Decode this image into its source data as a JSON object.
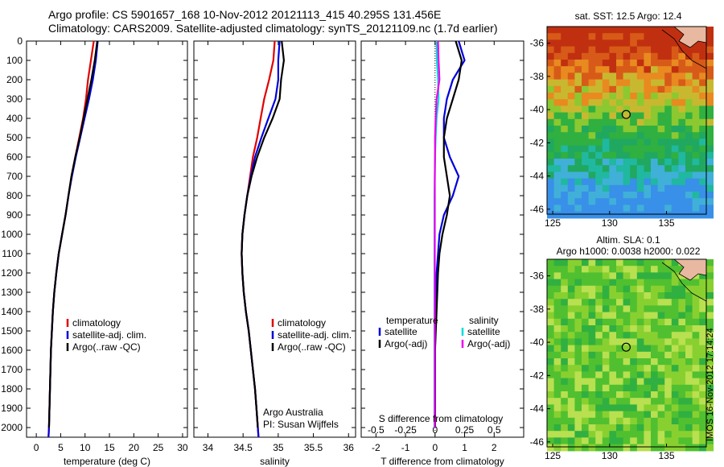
{
  "header": {
    "line1": "Argo profile: CS 5901657_168 10-Nov-2012 20121113_415 40.295S 131.456E",
    "line2": "Climatology: CARS2009. Satellite-adjusted climatology: synTS_20121109.nc (1.7d earlier)"
  },
  "chart_data": [
    {
      "type": "line",
      "xlabel": "temperature (deg C)",
      "ylabel": "",
      "xlim": [
        -2,
        31
      ],
      "ylim": [
        2050,
        0
      ],
      "xticks": [
        0,
        5,
        10,
        15,
        20,
        25,
        30
      ],
      "yticks": [
        0,
        100,
        200,
        300,
        400,
        500,
        600,
        700,
        800,
        900,
        1000,
        1100,
        1200,
        1300,
        1400,
        1500,
        1600,
        1700,
        1800,
        1900,
        2000
      ],
      "legend_position": "lower-right",
      "series": [
        {
          "name": "climatology",
          "color": "#e00000",
          "x": [
            11.8,
            11.2,
            10.6,
            10.2,
            9.6,
            8.8,
            8.0,
            7.2,
            6.6,
            6.0,
            5.3,
            4.6,
            4.1,
            3.7,
            3.4,
            3.2,
            3.0,
            2.9,
            2.8,
            2.7,
            2.6,
            2.5
          ],
          "y": [
            0,
            100,
            200,
            300,
            400,
            500,
            600,
            700,
            800,
            900,
            1000,
            1100,
            1200,
            1300,
            1400,
            1500,
            1600,
            1700,
            1800,
            1900,
            2000,
            2050
          ]
        },
        {
          "name": "satellite-adj. clim.",
          "color": "#0000dd",
          "x": [
            12.6,
            12.2,
            11.6,
            10.8,
            9.9,
            9.0,
            8.1,
            7.3,
            6.6,
            6.0,
            5.3,
            4.6,
            4.1,
            3.7,
            3.4,
            3.2,
            3.0,
            2.9,
            2.8,
            2.7,
            2.6,
            2.5
          ],
          "y": [
            0,
            100,
            200,
            300,
            400,
            500,
            600,
            700,
            800,
            900,
            1000,
            1100,
            1200,
            1300,
            1400,
            1500,
            1600,
            1700,
            1800,
            1900,
            2000,
            2050
          ]
        },
        {
          "name": "Argo(..raw -QC)",
          "color": "#000000",
          "x": [
            12.5,
            12.0,
            11.3,
            10.5,
            9.7,
            8.9,
            8.0,
            7.2,
            6.6,
            6.0,
            5.3,
            4.6,
            4.1,
            3.7,
            3.4,
            3.2,
            3.0,
            2.9,
            2.8,
            2.7,
            2.6
          ],
          "y": [
            0,
            100,
            200,
            300,
            400,
            500,
            600,
            700,
            800,
            900,
            1000,
            1100,
            1200,
            1300,
            1400,
            1500,
            1600,
            1700,
            1800,
            1900,
            2000
          ]
        }
      ]
    },
    {
      "type": "line",
      "xlabel": "salinity",
      "xlim": [
        33.8,
        36.1
      ],
      "ylim": [
        2050,
        0
      ],
      "xticks": [
        34,
        34.5,
        35,
        35.5,
        36
      ],
      "legend_position": "lower-right",
      "annotations": [
        "Argo Australia",
        "PI: Susan Wijffels"
      ],
      "series": [
        {
          "name": "climatology",
          "color": "#e00000",
          "x": [
            34.95,
            34.93,
            34.87,
            34.8,
            34.75,
            34.7,
            34.64,
            34.6,
            34.56,
            34.52,
            34.49,
            34.48,
            34.49,
            34.51,
            34.54,
            34.58,
            34.61,
            34.64,
            34.67,
            34.69,
            34.71,
            34.72
          ],
          "y": [
            0,
            100,
            200,
            300,
            400,
            500,
            600,
            700,
            800,
            900,
            1000,
            1100,
            1200,
            1300,
            1400,
            1500,
            1600,
            1700,
            1800,
            1900,
            2000,
            2050
          ]
        },
        {
          "name": "satellite-adj. clim.",
          "color": "#0000dd",
          "x": [
            35.02,
            35.0,
            35.0,
            34.96,
            34.86,
            34.76,
            34.67,
            34.61,
            34.56,
            34.52,
            34.49,
            34.48,
            34.49,
            34.51,
            34.54,
            34.58,
            34.61,
            34.64,
            34.67,
            34.69,
            34.71,
            34.72
          ],
          "y": [
            0,
            100,
            200,
            300,
            400,
            500,
            600,
            700,
            800,
            900,
            1000,
            1100,
            1200,
            1300,
            1400,
            1500,
            1600,
            1700,
            1800,
            1900,
            2000,
            2050
          ]
        },
        {
          "name": "Argo(..raw -QC)",
          "color": "#000000",
          "x": [
            35.05,
            35.08,
            35.04,
            35.02,
            34.92,
            34.8,
            34.7,
            34.62,
            34.56,
            34.52,
            34.49,
            34.48,
            34.49,
            34.51,
            34.54,
            34.58,
            34.61,
            34.64,
            34.67,
            34.69,
            34.71
          ],
          "y": [
            0,
            100,
            200,
            300,
            400,
            500,
            600,
            700,
            800,
            900,
            1000,
            1100,
            1200,
            1300,
            1400,
            1500,
            1600,
            1700,
            1800,
            1900,
            2000
          ]
        }
      ]
    },
    {
      "type": "line",
      "xlabel": "T difference from climatology",
      "xlabel2": "S difference from climatology",
      "xlim": [
        -2.5,
        3.0
      ],
      "ylim": [
        2050,
        0
      ],
      "xticks": [
        -2,
        -1,
        0,
        1,
        2
      ],
      "xticks2": [
        -0.5,
        -0.25,
        0,
        0.25,
        0.5
      ],
      "legend_position": "lower-center",
      "legend_groups": [
        "temperature",
        "salinity"
      ],
      "series": [
        {
          "name": "satellite",
          "group": "temperature",
          "color": "#0000dd",
          "x": [
            0.8,
            1.0,
            0.6,
            0.4,
            0.3,
            0.3,
            0.5,
            0.8,
            0.6,
            0.3,
            0.15,
            0.1,
            0.05,
            0.02,
            0.0,
            0.0,
            0.0,
            0.0,
            0.0
          ],
          "y": [
            0,
            100,
            200,
            300,
            400,
            500,
            600,
            700,
            800,
            900,
            1000,
            1100,
            1200,
            1400,
            1600,
            1700,
            1800,
            1900,
            2000
          ]
        },
        {
          "name": "Argo(-adj)",
          "group": "temperature",
          "color": "#000000",
          "x": [
            0.7,
            0.9,
            0.8,
            0.6,
            0.4,
            0.3,
            0.3,
            0.4,
            0.5,
            0.4,
            0.25,
            0.15,
            0.1,
            0.05,
            0.0,
            0.0,
            0.0,
            0.0,
            0.0
          ],
          "y": [
            0,
            100,
            200,
            300,
            400,
            500,
            600,
            700,
            800,
            900,
            1000,
            1100,
            1200,
            1400,
            1600,
            1700,
            1800,
            1900,
            2000
          ]
        },
        {
          "name": "satellite",
          "group": "salinity",
          "color": "#00dddd",
          "x": [
            0.05,
            0.06,
            0.1,
            0.12,
            0.05,
            0.02,
            0.0,
            -0.01,
            -0.02,
            -0.02,
            -0.02,
            -0.02,
            -0.02,
            -0.02,
            -0.02,
            -0.02,
            -0.02,
            -0.02,
            -0.02
          ],
          "y": [
            0,
            100,
            200,
            300,
            400,
            500,
            600,
            700,
            800,
            900,
            1000,
            1100,
            1200,
            1400,
            1600,
            1700,
            1800,
            1900,
            2000
          ]
        },
        {
          "name": "Argo(-adj)",
          "group": "salinity",
          "color": "#ee00ee",
          "x": [
            0.1,
            0.12,
            0.15,
            0.05,
            0.02,
            0.0,
            0.0,
            -0.01,
            -0.01,
            -0.01,
            -0.01,
            -0.01,
            -0.01,
            -0.01,
            -0.01,
            -0.01,
            -0.01,
            -0.01,
            -0.01
          ],
          "y": [
            0,
            100,
            200,
            300,
            400,
            500,
            600,
            700,
            800,
            900,
            1000,
            1100,
            1200,
            1400,
            1600,
            1700,
            1800,
            1900,
            2000
          ]
        }
      ]
    },
    {
      "type": "heatmap",
      "title": "sat. SST: 12.5 Argo: 12.4",
      "xlim": [
        124.5,
        138.5
      ],
      "ylim": [
        -46.3,
        -35
      ],
      "xticks": [
        125,
        130,
        135
      ],
      "yticks": [
        -36,
        -38,
        -40,
        -42,
        -44,
        -46
      ],
      "marker": {
        "lon": 131.456,
        "lat": -40.295
      }
    },
    {
      "type": "heatmap",
      "title": "Altim. SLA: 0.1",
      "subtitle": "Argo h1000: 0.0038 h2000: 0.022",
      "xlim": [
        124.5,
        138.5
      ],
      "ylim": [
        -46.3,
        -35
      ],
      "xticks": [
        125,
        130,
        135
      ],
      "yticks": [
        -36,
        -38,
        -40,
        -42,
        -44,
        -46
      ],
      "marker": {
        "lon": 131.456,
        "lat": -40.295
      }
    }
  ],
  "legend_titles": {
    "temperature": "temperature",
    "salinity": "salinity"
  },
  "watermark": "IMOS 16-Nov-2012 17:14:24"
}
